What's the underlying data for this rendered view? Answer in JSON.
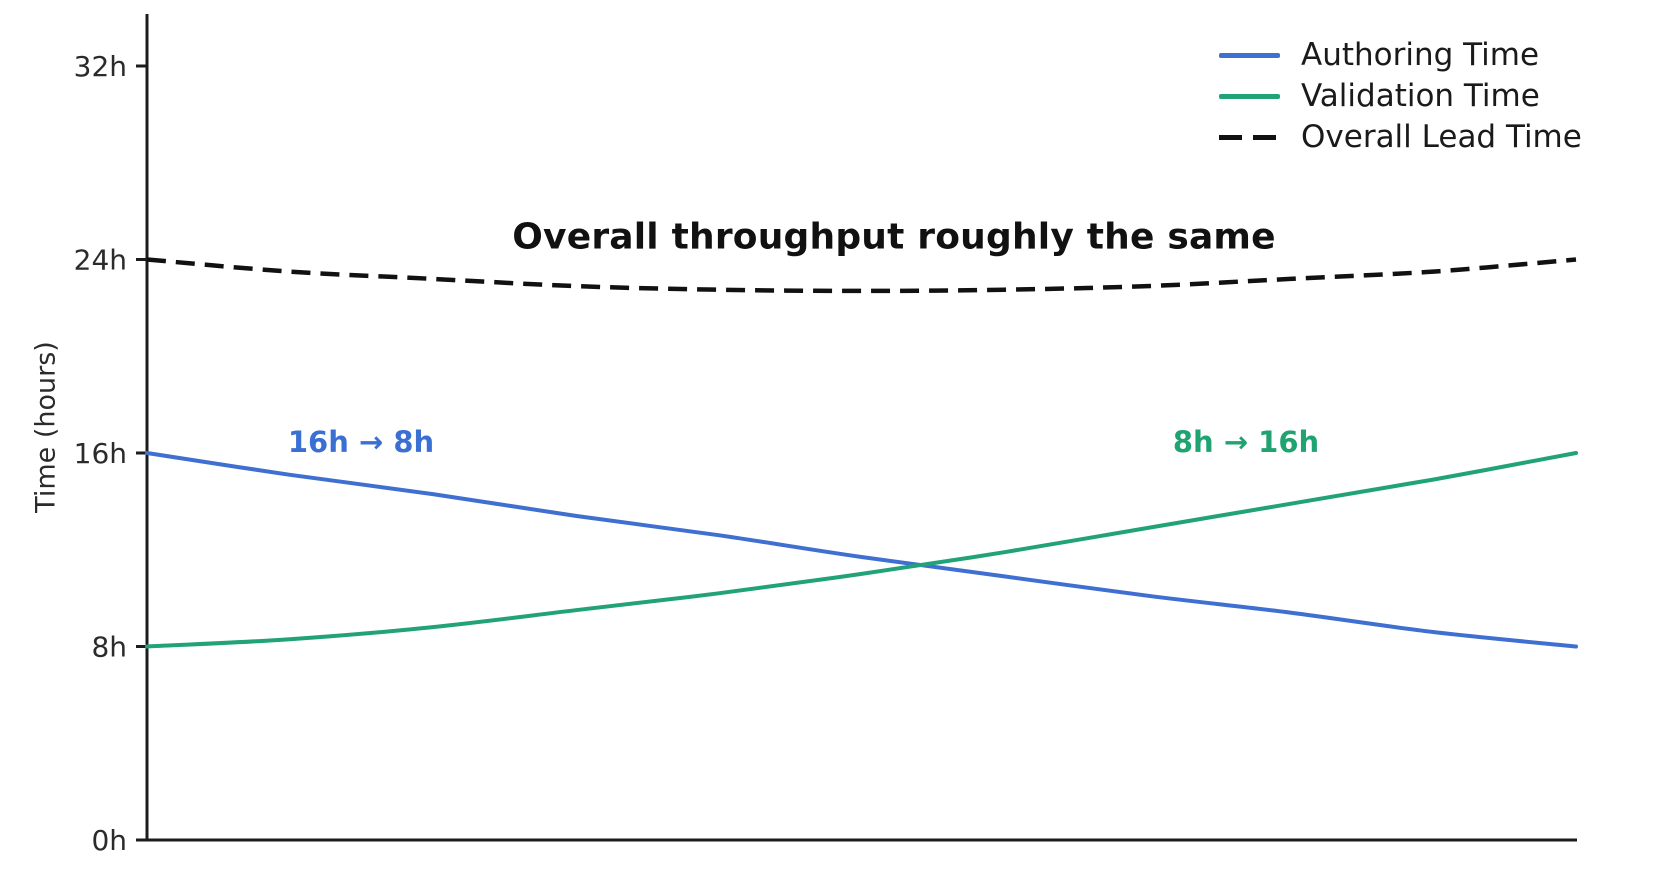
{
  "chart_data": {
    "type": "line",
    "ylabel": "Time (hours)",
    "ylim": [
      0,
      32
    ],
    "yticks": [
      {
        "value": 0,
        "label": "0h"
      },
      {
        "value": 8,
        "label": "8h"
      },
      {
        "value": 16,
        "label": "16h"
      },
      {
        "value": 24,
        "label": "24h"
      },
      {
        "value": 32,
        "label": "32h"
      }
    ],
    "xticks": [],
    "grid": false,
    "legend_position": "upper right",
    "x": [
      0,
      0.1,
      0.2,
      0.3,
      0.4,
      0.5,
      0.6,
      0.7,
      0.8,
      0.9,
      1.0
    ],
    "series": [
      {
        "name": "Authoring Time",
        "style": "solid",
        "color": "#3F6FD1",
        "values": [
          16,
          15.1,
          14.3,
          13.4,
          12.6,
          11.7,
          10.9,
          10.1,
          9.4,
          8.6,
          8
        ]
      },
      {
        "name": "Validation Time",
        "style": "solid",
        "color": "#22A279",
        "values": [
          8,
          8.3,
          8.8,
          9.5,
          10.2,
          11.0,
          11.9,
          12.9,
          13.9,
          14.9,
          16
        ]
      },
      {
        "name": "Overall Lead Time",
        "style": "dashed",
        "color": "#111111",
        "values": [
          24,
          23.5,
          23.2,
          22.9,
          22.75,
          22.7,
          22.75,
          22.9,
          23.2,
          23.5,
          24
        ]
      }
    ],
    "annotations": [
      {
        "text": "16h → 8h",
        "color": "#3A6FD4"
      },
      {
        "text": "8h → 16h",
        "color": "#1FA370"
      },
      {
        "text": "Overall throughput roughly the same",
        "color": "#111111"
      }
    ]
  }
}
